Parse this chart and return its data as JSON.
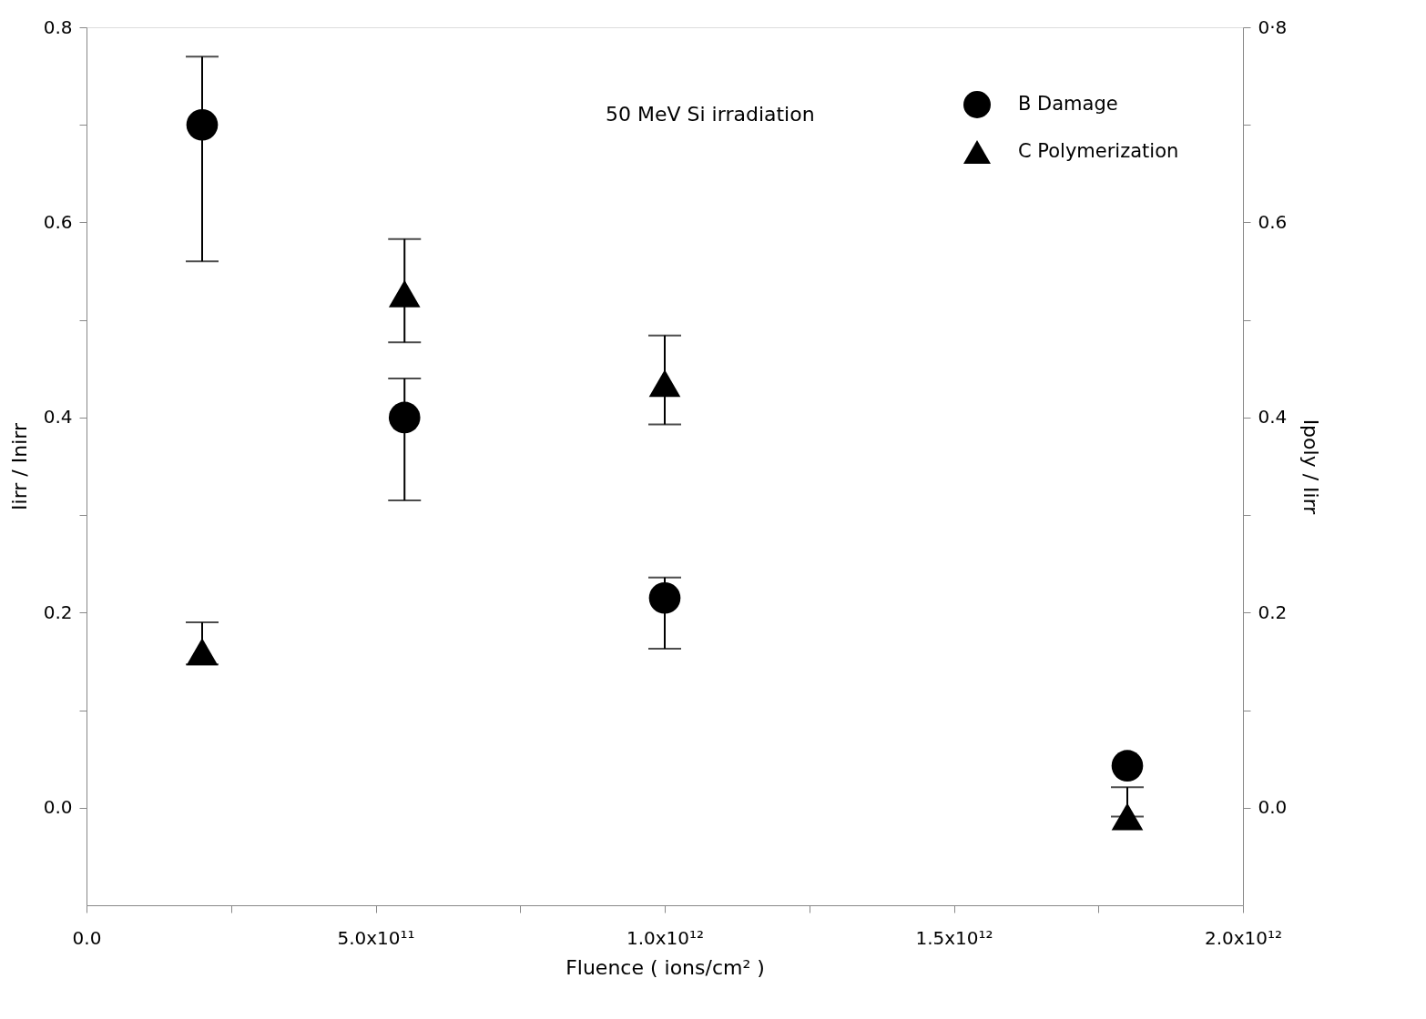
{
  "chart_data": {
    "type": "scatter",
    "xlabel": "Fluence ( ions/cm² )",
    "ylabel": "Iirr / Inirr",
    "y2label": "Ipoly / Iirr",
    "annotations": [
      "50 MeV Si irradiation"
    ],
    "xlim": [
      0,
      2000000000000.0
    ],
    "xticks": [
      {
        "value": 0,
        "label": "0.0"
      },
      {
        "value": 250000000000.0,
        "label": null
      },
      {
        "value": 500000000000.0,
        "label": "5.0x10¹¹"
      },
      {
        "value": 750000000000.0,
        "label": null
      },
      {
        "value": 1000000000000.0,
        "label": "1.0x10¹²"
      },
      {
        "value": 1250000000000.0,
        "label": null
      },
      {
        "value": 1500000000000.0,
        "label": "1.5x10¹²"
      },
      {
        "value": 1750000000000.0,
        "label": null
      },
      {
        "value": 2000000000000.0,
        "label": "2.0x10¹²"
      }
    ],
    "ylim": [
      -0.1,
      0.8
    ],
    "yticks": [
      {
        "value": 0,
        "label": "0.0"
      },
      {
        "value": 0.1,
        "label": null
      },
      {
        "value": 0.2,
        "label": "0.2"
      },
      {
        "value": 0.3,
        "label": null
      },
      {
        "value": 0.4,
        "label": "0.4"
      },
      {
        "value": 0.5,
        "label": null
      },
      {
        "value": 0.6,
        "label": "0.6"
      },
      {
        "value": 0.7,
        "label": null
      },
      {
        "value": 0.8,
        "label": "0.8"
      }
    ],
    "y2lim": [
      -0.1,
      0.8
    ],
    "y2ticks": [
      {
        "value": 0,
        "label": "0.0"
      },
      {
        "value": 0.1,
        "label": null
      },
      {
        "value": 0.2,
        "label": "0.2"
      },
      {
        "value": 0.3,
        "label": null
      },
      {
        "value": 0.4,
        "label": "0.4"
      },
      {
        "value": 0.5,
        "label": null
      },
      {
        "value": 0.6,
        "label": "0.6"
      },
      {
        "value": 0.7,
        "label": null
      },
      {
        "value": 0.8,
        "label": "0·8"
      }
    ],
    "grid": false,
    "legend": "top right",
    "series": [
      {
        "name": "B Damage",
        "color": "#000000",
        "marker": "circle",
        "x": [
          200000000000.0,
          550000000000.0,
          1000000000000.0,
          1800000000000.0
        ],
        "values": [
          0.7,
          0.4,
          0.215,
          0.043
        ],
        "errors": [
          [
            0.56,
            0.77
          ],
          [
            0.315,
            0.44
          ],
          [
            0.163,
            0.236
          ],
          null
        ]
      },
      {
        "name": "C Polymerization",
        "color": "#000000",
        "marker": "triangle",
        "axis": "y2",
        "x": [
          200000000000.0,
          550000000000.0,
          1000000000000.0,
          1800000000000.0
        ],
        "values": [
          0.16,
          0.527,
          0.435,
          -0.009
        ],
        "errors": [
          [
            0.147,
            0.19
          ],
          [
            0.477,
            0.583
          ],
          [
            0.393,
            0.484
          ],
          [
            -0.009,
            0.021
          ]
        ]
      }
    ]
  }
}
